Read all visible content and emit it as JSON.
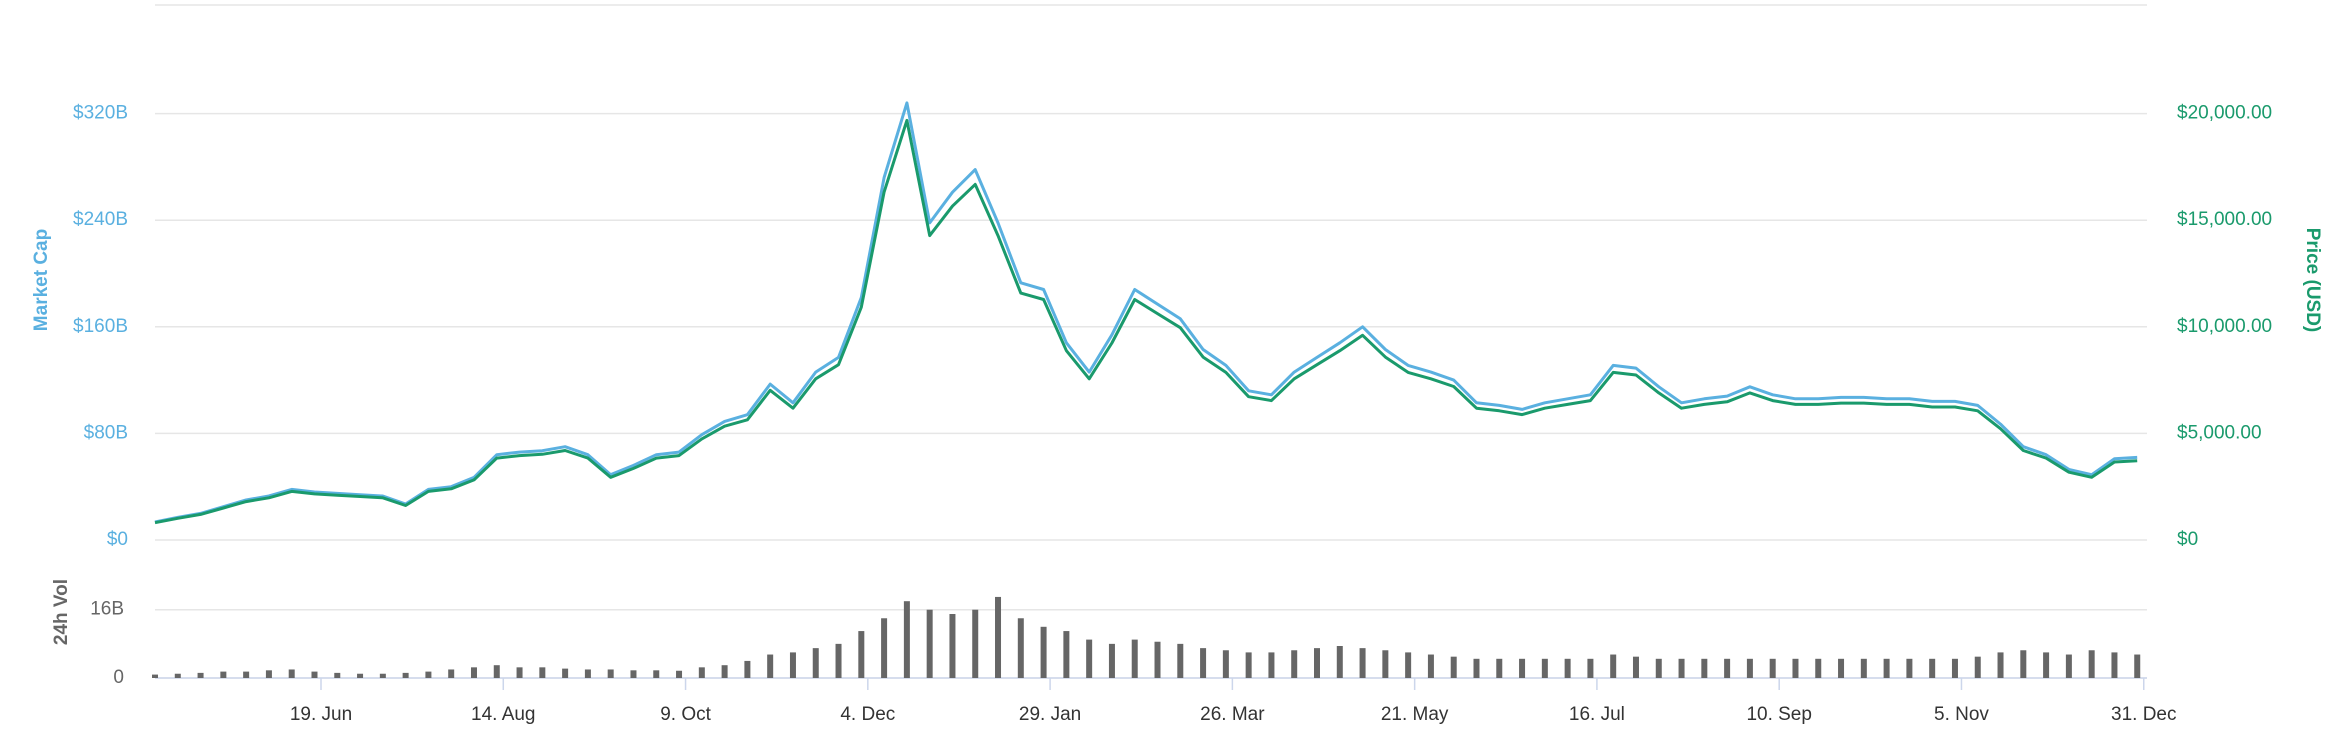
{
  "chart_data": [
    {
      "type": "line",
      "x": [
        0,
        7,
        14,
        21,
        28,
        35,
        42,
        49,
        56,
        63,
        70,
        77,
        84,
        91,
        98,
        105,
        112,
        119,
        126,
        133,
        140,
        147,
        154,
        161,
        168,
        175,
        182,
        189,
        196,
        203,
        210,
        217,
        224,
        231,
        238,
        245,
        252,
        259,
        266,
        273,
        280,
        287,
        294,
        301,
        308,
        315,
        322,
        329,
        336,
        343,
        350,
        357,
        364,
        371,
        378,
        385,
        392,
        399,
        406,
        413,
        420,
        427,
        434,
        441,
        448,
        455,
        462,
        469,
        476,
        483,
        490,
        497,
        504,
        511,
        518,
        525,
        532,
        539,
        546,
        553,
        560,
        567,
        574,
        581,
        588,
        595,
        602,
        609
      ],
      "xlim": [
        0,
        612
      ],
      "series": [
        {
          "name": "Market Cap",
          "color": "#5ab0e0",
          "axis": "y",
          "values": [
            13.5,
            17,
            20,
            25,
            30,
            33,
            38,
            36,
            35,
            34,
            33,
            27,
            38,
            40,
            47,
            64,
            66,
            67,
            70,
            64,
            49,
            56,
            64,
            66,
            79,
            89,
            94,
            117,
            103,
            126,
            137,
            182,
            272,
            328,
            238,
            261,
            278,
            238,
            193,
            188,
            148,
            126,
            154,
            188,
            177,
            166,
            143,
            131,
            112,
            109,
            126,
            137,
            148,
            160,
            143,
            131,
            126,
            120,
            103,
            101,
            98,
            103,
            106,
            109,
            131,
            129,
            115,
            103,
            106,
            108,
            115,
            109,
            106,
            106,
            107,
            107,
            106,
            106,
            104,
            104,
            101,
            87,
            70,
            64,
            53,
            49,
            61,
            62
          ]
        },
        {
          "name": "Price (USD)",
          "color": "#1a9a6c",
          "axis": "y2",
          "values": [
            810,
            1020,
            1200,
            1500,
            1800,
            1980,
            2280,
            2160,
            2100,
            2040,
            1980,
            1620,
            2280,
            2400,
            2820,
            3840,
            3960,
            4020,
            4200,
            3840,
            2940,
            3360,
            3840,
            3960,
            4740,
            5340,
            5640,
            7020,
            6180,
            7560,
            8220,
            10920,
            16320,
            19680,
            14280,
            15660,
            16680,
            14280,
            11580,
            11280,
            8880,
            7560,
            9240,
            11280,
            10620,
            9960,
            8580,
            7860,
            6720,
            6540,
            7560,
            8220,
            8880,
            9600,
            8580,
            7860,
            7560,
            7200,
            6180,
            6060,
            5880,
            6180,
            6360,
            6540,
            7860,
            7740,
            6900,
            6180,
            6360,
            6480,
            6900,
            6540,
            6360,
            6360,
            6420,
            6420,
            6360,
            6360,
            6240,
            6240,
            6060,
            5220,
            4200,
            3840,
            3180,
            2940,
            3660,
            3720
          ]
        }
      ],
      "ylim": [
        0,
        400
      ],
      "yticks": [
        {
          "value": 0,
          "label": "$0"
        },
        {
          "value": 80,
          "label": "$80B"
        },
        {
          "value": 160,
          "label": "$160B"
        },
        {
          "value": 240,
          "label": "$240B"
        },
        {
          "value": 320,
          "label": "$320B"
        }
      ],
      "y2lim": [
        0,
        25000
      ],
      "y2ticks": [
        {
          "value": 0,
          "label": "$0"
        },
        {
          "value": 5000,
          "label": "$5,000.00"
        },
        {
          "value": 10000,
          "label": "$10,000.00"
        },
        {
          "value": 15000,
          "label": "$15,000.00"
        },
        {
          "value": 20000,
          "label": "$20,000.00"
        }
      ],
      "grid": true
    },
    {
      "type": "bar",
      "ylabel": "24h Vol",
      "x": [
        0,
        7,
        14,
        21,
        28,
        35,
        42,
        49,
        56,
        63,
        70,
        77,
        84,
        91,
        98,
        105,
        112,
        119,
        126,
        133,
        140,
        147,
        154,
        161,
        168,
        175,
        182,
        189,
        196,
        203,
        210,
        217,
        224,
        231,
        238,
        245,
        252,
        259,
        266,
        273,
        280,
        287,
        294,
        301,
        308,
        315,
        322,
        329,
        336,
        343,
        350,
        357,
        364,
        371,
        378,
        385,
        392,
        399,
        406,
        413,
        420,
        427,
        434,
        441,
        448,
        455,
        462,
        469,
        476,
        483,
        490,
        497,
        504,
        511,
        518,
        525,
        532,
        539,
        546,
        553,
        560,
        567,
        574,
        581,
        588,
        595,
        602,
        609
      ],
      "xlim": [
        0,
        612
      ],
      "xticks": [
        {
          "value": 51,
          "label": "19. Jun"
        },
        {
          "value": 107,
          "label": "14. Aug"
        },
        {
          "value": 163,
          "label": "9. Oct"
        },
        {
          "value": 219,
          "label": "4. Dec"
        },
        {
          "value": 275,
          "label": "29. Jan"
        },
        {
          "value": 331,
          "label": "26. Mar"
        },
        {
          "value": 387,
          "label": "21. May"
        },
        {
          "value": 443,
          "label": "16. Jul"
        },
        {
          "value": 499,
          "label": "10. Sep"
        },
        {
          "value": 555,
          "label": "5. Nov"
        },
        {
          "value": 611,
          "label": "31. Dec"
        }
      ],
      "values": [
        0.8,
        1,
        1.2,
        1.5,
        1.5,
        1.8,
        2,
        1.5,
        1.2,
        1,
        1,
        1.2,
        1.5,
        2,
        2.5,
        3,
        2.5,
        2.5,
        2.2,
        2,
        2,
        1.8,
        1.8,
        1.7,
        2.5,
        3,
        4,
        5.5,
        6,
        7,
        8,
        11,
        14,
        18,
        16,
        15,
        16,
        19,
        14,
        12,
        11,
        9,
        8,
        9,
        8.5,
        8,
        7,
        6.5,
        6,
        6,
        6.5,
        7,
        7.5,
        7,
        6.5,
        6,
        5.5,
        5,
        4.5,
        4.5,
        4.5,
        4.5,
        4.5,
        4.5,
        5.5,
        5,
        4.5,
        4.5,
        4.5,
        4.5,
        4.5,
        4.5,
        4.5,
        4.5,
        4.5,
        4.5,
        4.5,
        4.5,
        4.5,
        4.5,
        5,
        6,
        6.5,
        6,
        5.5,
        6.5,
        6,
        5.5
      ],
      "color": "#666666",
      "ylim": [
        0,
        30
      ],
      "yticks": [
        0,
        {
          "value": 16,
          "label": "16B"
        }
      ],
      "grid": true
    }
  ]
}
